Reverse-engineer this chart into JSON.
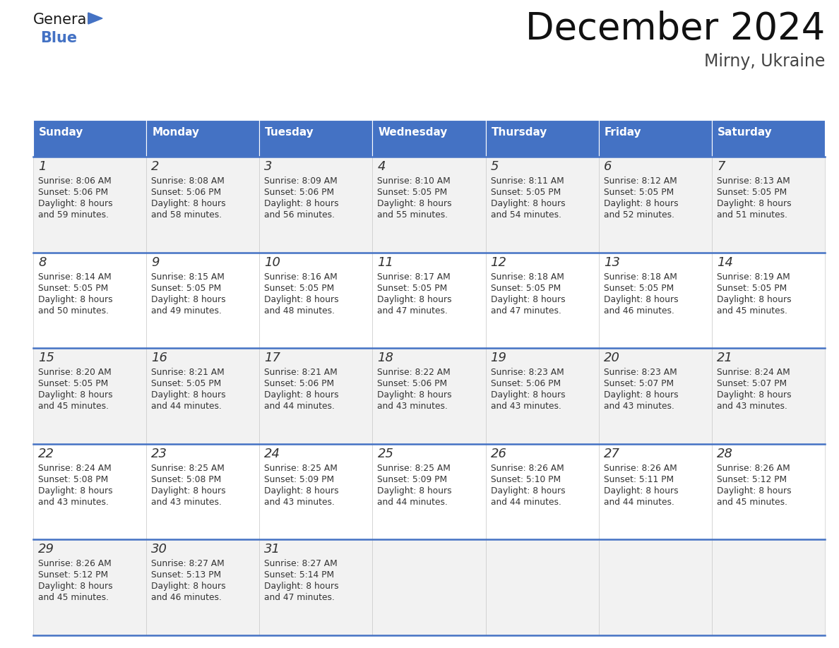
{
  "title": "December 2024",
  "subtitle": "Mirny, Ukraine",
  "header_color": "#4472C4",
  "header_text_color": "#FFFFFF",
  "cell_bg_even": "#F2F2F2",
  "cell_bg_odd": "#FFFFFF",
  "text_color": "#333333",
  "line_color": "#4472C4",
  "days_of_week": [
    "Sunday",
    "Monday",
    "Tuesday",
    "Wednesday",
    "Thursday",
    "Friday",
    "Saturday"
  ],
  "weeks": [
    [
      {
        "day": "1",
        "sunrise": "8:06 AM",
        "sunset": "5:06 PM",
        "daylight_hrs": "8 hours",
        "daylight_min": "and 59 minutes."
      },
      {
        "day": "2",
        "sunrise": "8:08 AM",
        "sunset": "5:06 PM",
        "daylight_hrs": "8 hours",
        "daylight_min": "and 58 minutes."
      },
      {
        "day": "3",
        "sunrise": "8:09 AM",
        "sunset": "5:06 PM",
        "daylight_hrs": "8 hours",
        "daylight_min": "and 56 minutes."
      },
      {
        "day": "4",
        "sunrise": "8:10 AM",
        "sunset": "5:05 PM",
        "daylight_hrs": "8 hours",
        "daylight_min": "and 55 minutes."
      },
      {
        "day": "5",
        "sunrise": "8:11 AM",
        "sunset": "5:05 PM",
        "daylight_hrs": "8 hours",
        "daylight_min": "and 54 minutes."
      },
      {
        "day": "6",
        "sunrise": "8:12 AM",
        "sunset": "5:05 PM",
        "daylight_hrs": "8 hours",
        "daylight_min": "and 52 minutes."
      },
      {
        "day": "7",
        "sunrise": "8:13 AM",
        "sunset": "5:05 PM",
        "daylight_hrs": "8 hours",
        "daylight_min": "and 51 minutes."
      }
    ],
    [
      {
        "day": "8",
        "sunrise": "8:14 AM",
        "sunset": "5:05 PM",
        "daylight_hrs": "8 hours",
        "daylight_min": "and 50 minutes."
      },
      {
        "day": "9",
        "sunrise": "8:15 AM",
        "sunset": "5:05 PM",
        "daylight_hrs": "8 hours",
        "daylight_min": "and 49 minutes."
      },
      {
        "day": "10",
        "sunrise": "8:16 AM",
        "sunset": "5:05 PM",
        "daylight_hrs": "8 hours",
        "daylight_min": "and 48 minutes."
      },
      {
        "day": "11",
        "sunrise": "8:17 AM",
        "sunset": "5:05 PM",
        "daylight_hrs": "8 hours",
        "daylight_min": "and 47 minutes."
      },
      {
        "day": "12",
        "sunrise": "8:18 AM",
        "sunset": "5:05 PM",
        "daylight_hrs": "8 hours",
        "daylight_min": "and 47 minutes."
      },
      {
        "day": "13",
        "sunrise": "8:18 AM",
        "sunset": "5:05 PM",
        "daylight_hrs": "8 hours",
        "daylight_min": "and 46 minutes."
      },
      {
        "day": "14",
        "sunrise": "8:19 AM",
        "sunset": "5:05 PM",
        "daylight_hrs": "8 hours",
        "daylight_min": "and 45 minutes."
      }
    ],
    [
      {
        "day": "15",
        "sunrise": "8:20 AM",
        "sunset": "5:05 PM",
        "daylight_hrs": "8 hours",
        "daylight_min": "and 45 minutes."
      },
      {
        "day": "16",
        "sunrise": "8:21 AM",
        "sunset": "5:05 PM",
        "daylight_hrs": "8 hours",
        "daylight_min": "and 44 minutes."
      },
      {
        "day": "17",
        "sunrise": "8:21 AM",
        "sunset": "5:06 PM",
        "daylight_hrs": "8 hours",
        "daylight_min": "and 44 minutes."
      },
      {
        "day": "18",
        "sunrise": "8:22 AM",
        "sunset": "5:06 PM",
        "daylight_hrs": "8 hours",
        "daylight_min": "and 43 minutes."
      },
      {
        "day": "19",
        "sunrise": "8:23 AM",
        "sunset": "5:06 PM",
        "daylight_hrs": "8 hours",
        "daylight_min": "and 43 minutes."
      },
      {
        "day": "20",
        "sunrise": "8:23 AM",
        "sunset": "5:07 PM",
        "daylight_hrs": "8 hours",
        "daylight_min": "and 43 minutes."
      },
      {
        "day": "21",
        "sunrise": "8:24 AM",
        "sunset": "5:07 PM",
        "daylight_hrs": "8 hours",
        "daylight_min": "and 43 minutes."
      }
    ],
    [
      {
        "day": "22",
        "sunrise": "8:24 AM",
        "sunset": "5:08 PM",
        "daylight_hrs": "8 hours",
        "daylight_min": "and 43 minutes."
      },
      {
        "day": "23",
        "sunrise": "8:25 AM",
        "sunset": "5:08 PM",
        "daylight_hrs": "8 hours",
        "daylight_min": "and 43 minutes."
      },
      {
        "day": "24",
        "sunrise": "8:25 AM",
        "sunset": "5:09 PM",
        "daylight_hrs": "8 hours",
        "daylight_min": "and 43 minutes."
      },
      {
        "day": "25",
        "sunrise": "8:25 AM",
        "sunset": "5:09 PM",
        "daylight_hrs": "8 hours",
        "daylight_min": "and 44 minutes."
      },
      {
        "day": "26",
        "sunrise": "8:26 AM",
        "sunset": "5:10 PM",
        "daylight_hrs": "8 hours",
        "daylight_min": "and 44 minutes."
      },
      {
        "day": "27",
        "sunrise": "8:26 AM",
        "sunset": "5:11 PM",
        "daylight_hrs": "8 hours",
        "daylight_min": "and 44 minutes."
      },
      {
        "day": "28",
        "sunrise": "8:26 AM",
        "sunset": "5:12 PM",
        "daylight_hrs": "8 hours",
        "daylight_min": "and 45 minutes."
      }
    ],
    [
      {
        "day": "29",
        "sunrise": "8:26 AM",
        "sunset": "5:12 PM",
        "daylight_hrs": "8 hours",
        "daylight_min": "and 45 minutes."
      },
      {
        "day": "30",
        "sunrise": "8:27 AM",
        "sunset": "5:13 PM",
        "daylight_hrs": "8 hours",
        "daylight_min": "and 46 minutes."
      },
      {
        "day": "31",
        "sunrise": "8:27 AM",
        "sunset": "5:14 PM",
        "daylight_hrs": "8 hours",
        "daylight_min": "and 47 minutes."
      },
      null,
      null,
      null,
      null
    ]
  ]
}
